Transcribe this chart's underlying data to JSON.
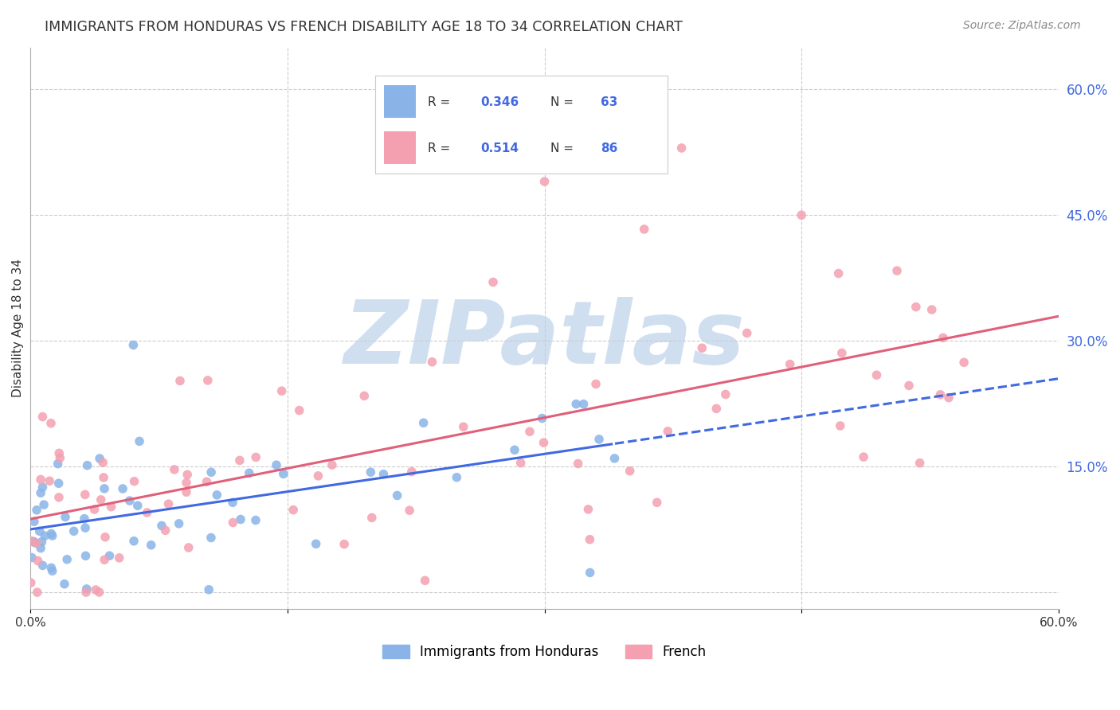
{
  "title": "IMMIGRANTS FROM HONDURAS VS FRENCH DISABILITY AGE 18 TO 34 CORRELATION CHART",
  "source": "Source: ZipAtlas.com",
  "ylabel": "Disability Age 18 to 34",
  "series1_name": "Immigrants from Honduras",
  "series1_color": "#8ab4e8",
  "series1_R": 0.346,
  "series1_N": 63,
  "series2_name": "French",
  "series2_color": "#f4a0b0",
  "series2_R": 0.514,
  "series2_N": 86,
  "legend_R_color": "#4169e1",
  "title_color": "#333333",
  "background_color": "#ffffff",
  "watermark_text": "ZIPatlas",
  "watermark_color": "#d0dff0",
  "seed": 42,
  "xlim": [
    0.0,
    60.0
  ],
  "ylim": [
    -2.0,
    65.0
  ]
}
